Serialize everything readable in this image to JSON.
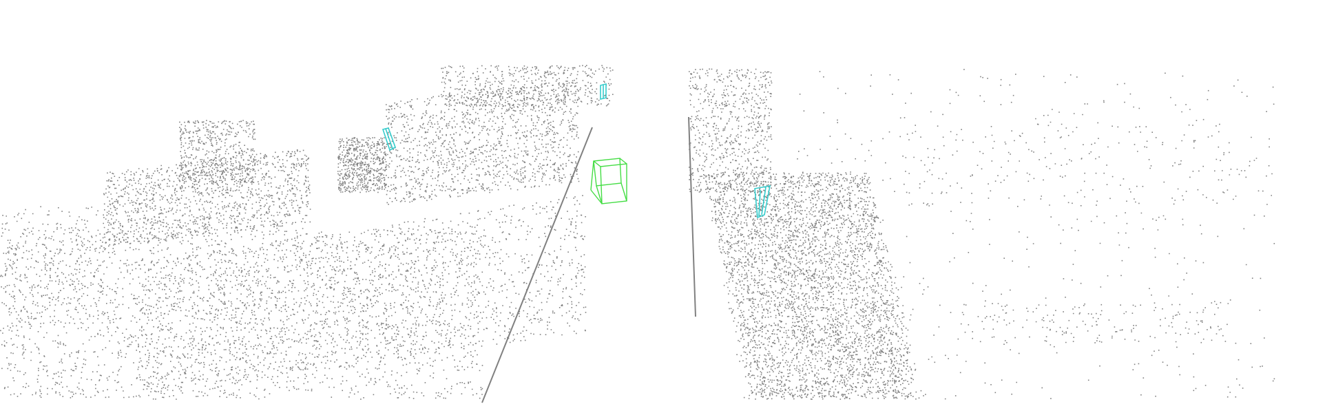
{
  "scene": {
    "type": "lidar-point-cloud-bev-perspective",
    "background": "#ffffff",
    "point_color": "#808080",
    "objects": [
      {
        "label": "car",
        "color": "#44dd44",
        "count": 1
      },
      {
        "label": "cyclist-or-pedestrian",
        "color": "#33cccc",
        "count": 3
      }
    ]
  }
}
